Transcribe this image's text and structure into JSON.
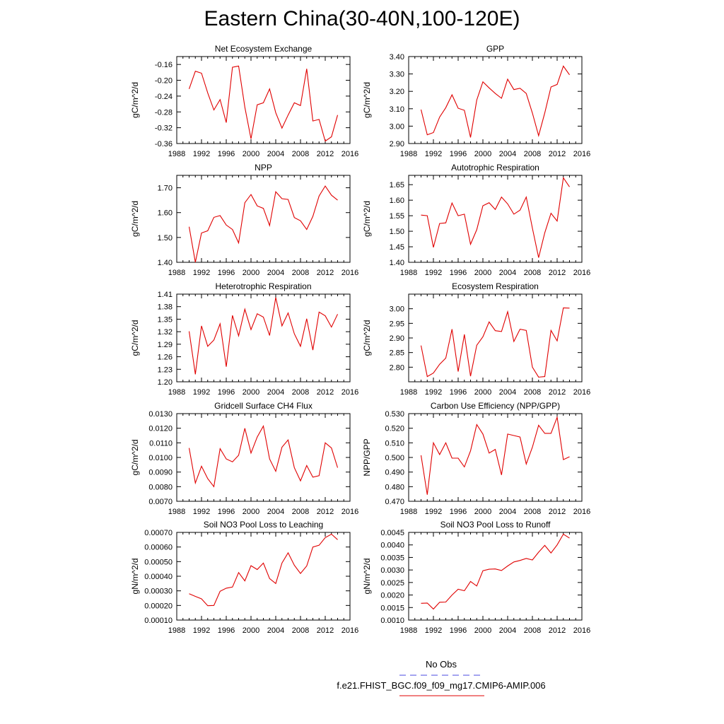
{
  "figure": {
    "title": "Eastern China(30-40N,100-120E)",
    "legend": [
      {
        "label": "No Obs",
        "color": "#4a4ae0",
        "style": "dashed"
      },
      {
        "label": "f.e21.FHIST_BGC.f09_f09_mg17.CMIP6-AMIP.006",
        "color": "#e00000",
        "style": "solid"
      }
    ]
  },
  "chart_data": [
    {
      "type": "line",
      "title": "Net Ecosystem Exchange",
      "ylabel": "gC/m^2/d",
      "xlim": [
        1988,
        2016
      ],
      "xticks": [
        "1988",
        "1992",
        "1996",
        "2000",
        "2004",
        "2008",
        "2012",
        "2016"
      ],
      "ylim": [
        -0.36,
        -0.14
      ],
      "yticks": [
        "-0.16",
        "-0.20",
        "-0.24",
        "-0.28",
        "-0.32",
        "-0.36"
      ],
      "color": "#e00000",
      "x": [
        1990,
        1991,
        1992,
        1993,
        1994,
        1995,
        1996,
        1997,
        1998,
        1999,
        2000,
        2001,
        2002,
        2003,
        2004,
        2005,
        2006,
        2007,
        2008,
        2009,
        2010,
        2011,
        2012,
        2013,
        2014
      ],
      "y": [
        -0.222,
        -0.177,
        -0.182,
        -0.232,
        -0.275,
        -0.249,
        -0.307,
        -0.167,
        -0.164,
        -0.268,
        -0.348,
        -0.262,
        -0.257,
        -0.222,
        -0.282,
        -0.321,
        -0.288,
        -0.257,
        -0.264,
        -0.171,
        -0.303,
        -0.299,
        -0.354,
        -0.343,
        -0.288
      ]
    },
    {
      "type": "line",
      "title": "GPP",
      "ylabel": "gC/m^2/d",
      "xlim": [
        1988,
        2016
      ],
      "xticks": [
        "1988",
        "1992",
        "1996",
        "2000",
        "2004",
        "2008",
        "2012",
        "2016"
      ],
      "ylim": [
        2.9,
        3.4
      ],
      "yticks": [
        "3.40",
        "3.30",
        "3.20",
        "3.10",
        "3.00",
        "2.90"
      ],
      "color": "#e00000",
      "x": [
        1990,
        1991,
        1992,
        1993,
        1994,
        1995,
        1996,
        1997,
        1998,
        1999,
        2000,
        2001,
        2002,
        2003,
        2004,
        2005,
        2006,
        2007,
        2008,
        2009,
        2010,
        2011,
        2012,
        2013,
        2014
      ],
      "y": [
        3.095,
        2.95,
        2.963,
        3.052,
        3.106,
        3.18,
        3.103,
        3.091,
        2.935,
        3.15,
        3.255,
        3.22,
        3.188,
        3.16,
        3.27,
        3.21,
        3.218,
        3.188,
        3.075,
        2.945,
        3.076,
        3.225,
        3.24,
        3.345,
        3.295
      ]
    },
    {
      "type": "line",
      "title": "NPP",
      "ylabel": "gC/m^2/d",
      "xlim": [
        1988,
        2016
      ],
      "xticks": [
        "1988",
        "1992",
        "1996",
        "2000",
        "2004",
        "2008",
        "2012",
        "2016"
      ],
      "ylim": [
        1.4,
        1.75
      ],
      "yticks": [
        "1.70",
        "1.60",
        "1.50",
        "1.40"
      ],
      "color": "#e00000",
      "x": [
        1990,
        1991,
        1992,
        1993,
        1994,
        1995,
        1996,
        1997,
        1998,
        1999,
        2000,
        2001,
        2002,
        2003,
        2004,
        2005,
        2006,
        2007,
        2008,
        2009,
        2010,
        2011,
        2012,
        2013,
        2014
      ],
      "y": [
        1.543,
        1.4,
        1.518,
        1.527,
        1.581,
        1.588,
        1.55,
        1.532,
        1.478,
        1.64,
        1.673,
        1.627,
        1.617,
        1.548,
        1.684,
        1.656,
        1.653,
        1.58,
        1.567,
        1.532,
        1.585,
        1.667,
        1.707,
        1.67,
        1.65
      ]
    },
    {
      "type": "line",
      "title": "Autotrophic Respiration",
      "ylabel": "gC/m^2/d",
      "xlim": [
        1988,
        2016
      ],
      "xticks": [
        "1988",
        "1992",
        "1996",
        "2000",
        "2004",
        "2008",
        "2012",
        "2016"
      ],
      "ylim": [
        1.4,
        1.68
      ],
      "yticks": [
        "1.65",
        "1.60",
        "1.55",
        "1.50",
        "1.45",
        "1.40"
      ],
      "color": "#e00000",
      "x": [
        1990,
        1991,
        1992,
        1993,
        1994,
        1995,
        1996,
        1997,
        1998,
        1999,
        2000,
        2001,
        2002,
        2003,
        2004,
        2005,
        2006,
        2007,
        2008,
        2009,
        2010,
        2011,
        2012,
        2013,
        2014
      ],
      "y": [
        1.552,
        1.55,
        1.448,
        1.525,
        1.527,
        1.591,
        1.55,
        1.555,
        1.458,
        1.505,
        1.582,
        1.592,
        1.57,
        1.61,
        1.588,
        1.555,
        1.568,
        1.61,
        1.51,
        1.415,
        1.495,
        1.558,
        1.533,
        1.672,
        1.643
      ]
    },
    {
      "type": "line",
      "title": "Heterotrophic Respiration",
      "ylabel": "gC/m^2/d",
      "xlim": [
        1988,
        2016
      ],
      "xticks": [
        "1988",
        "1992",
        "1996",
        "2000",
        "2004",
        "2008",
        "2012",
        "2016"
      ],
      "ylim": [
        1.2,
        1.41
      ],
      "yticks": [
        "1.41",
        "1.38",
        "1.35",
        "1.32",
        "1.29",
        "1.26",
        "1.23",
        "1.20"
      ],
      "color": "#e00000",
      "x": [
        1990,
        1991,
        1992,
        1993,
        1994,
        1995,
        1996,
        1997,
        1998,
        1999,
        2000,
        2001,
        2002,
        2003,
        2004,
        2005,
        2006,
        2007,
        2008,
        2009,
        2010,
        2011,
        2012,
        2013,
        2014
      ],
      "y": [
        1.321,
        1.218,
        1.334,
        1.285,
        1.3,
        1.339,
        1.236,
        1.359,
        1.31,
        1.374,
        1.325,
        1.363,
        1.355,
        1.311,
        1.402,
        1.334,
        1.365,
        1.315,
        1.285,
        1.351,
        1.276,
        1.367,
        1.358,
        1.331,
        1.362
      ]
    },
    {
      "type": "line",
      "title": "Ecosystem Respiration",
      "ylabel": "gC/m^2/d",
      "xlim": [
        1988,
        2016
      ],
      "xticks": [
        "1988",
        "1992",
        "1996",
        "2000",
        "2004",
        "2008",
        "2012",
        "2016"
      ],
      "ylim": [
        2.75,
        3.05
      ],
      "yticks": [
        "3.00",
        "2.95",
        "2.90",
        "2.85",
        "2.80"
      ],
      "color": "#e00000",
      "x": [
        1990,
        1991,
        1992,
        1993,
        1994,
        1995,
        1996,
        1997,
        1998,
        1999,
        2000,
        2001,
        2002,
        2003,
        2004,
        2005,
        2006,
        2007,
        2008,
        2009,
        2010,
        2011,
        2012,
        2013,
        2014
      ],
      "y": [
        2.874,
        2.768,
        2.78,
        2.81,
        2.831,
        2.93,
        2.785,
        2.912,
        2.769,
        2.875,
        2.904,
        2.955,
        2.925,
        2.922,
        2.99,
        2.888,
        2.93,
        2.926,
        2.8,
        2.766,
        2.768,
        2.926,
        2.89,
        3.003,
        3.002
      ]
    },
    {
      "type": "line",
      "title": "Gridcell Surface CH4 Flux",
      "ylabel": "gC/m^2/d",
      "xlim": [
        1988,
        2016
      ],
      "xticks": [
        "1988",
        "1992",
        "1996",
        "2000",
        "2004",
        "2008",
        "2012",
        "2016"
      ],
      "ylim": [
        0.007,
        0.013
      ],
      "yticks": [
        "0.0130",
        "0.0120",
        "0.0110",
        "0.0100",
        "0.0090",
        "0.0080",
        "0.0070"
      ],
      "color": "#e00000",
      "x": [
        1990,
        1991,
        1992,
        1993,
        1994,
        1995,
        1996,
        1997,
        1998,
        1999,
        2000,
        2001,
        2002,
        2003,
        2004,
        2005,
        2006,
        2007,
        2008,
        2009,
        2010,
        2011,
        2012,
        2013,
        2014
      ],
      "y": [
        0.01065,
        0.00825,
        0.0094,
        0.00855,
        0.008,
        0.0106,
        0.0099,
        0.0097,
        0.01015,
        0.012,
        0.0103,
        0.0114,
        0.01215,
        0.0099,
        0.00905,
        0.0107,
        0.0112,
        0.0093,
        0.0084,
        0.00945,
        0.00865,
        0.00875,
        0.011,
        0.01065,
        0.0093
      ]
    },
    {
      "type": "line",
      "title": "Carbon Use Efficiency (NPP/GPP)",
      "ylabel": "NPP/GPP",
      "xlim": [
        1988,
        2016
      ],
      "xticks": [
        "1988",
        "1992",
        "1996",
        "2000",
        "2004",
        "2008",
        "2012",
        "2016"
      ],
      "ylim": [
        0.47,
        0.53
      ],
      "yticks": [
        "0.530",
        "0.520",
        "0.510",
        "0.500",
        "0.490",
        "0.480",
        "0.470"
      ],
      "color": "#e00000",
      "x": [
        1990,
        1991,
        1992,
        1993,
        1994,
        1995,
        1996,
        1997,
        1998,
        1999,
        2000,
        2001,
        2002,
        2003,
        2004,
        2005,
        2006,
        2007,
        2008,
        2009,
        2010,
        2011,
        2012,
        2013,
        2014
      ],
      "y": [
        0.5015,
        0.4745,
        0.51,
        0.502,
        0.51,
        0.4995,
        0.4995,
        0.4935,
        0.5045,
        0.5225,
        0.516,
        0.503,
        0.5055,
        0.488,
        0.516,
        0.515,
        0.514,
        0.4955,
        0.507,
        0.522,
        0.5165,
        0.5165,
        0.5275,
        0.4985,
        0.5005
      ]
    },
    {
      "type": "line",
      "title": "Soil NO3 Pool Loss to Leaching",
      "ylabel": "gN/m^2/d",
      "xlim": [
        1988,
        2016
      ],
      "xticks": [
        "1988",
        "1992",
        "1996",
        "2000",
        "2004",
        "2008",
        "2012",
        "2016"
      ],
      "ylim": [
        0.0001,
        0.0007
      ],
      "yticks": [
        "0.00070",
        "0.00060",
        "0.00050",
        "0.00040",
        "0.00030",
        "0.00020",
        "0.00010"
      ],
      "color": "#e00000",
      "x": [
        1990,
        1991,
        1992,
        1993,
        1994,
        1995,
        1996,
        1997,
        1998,
        1999,
        2000,
        2001,
        2002,
        2003,
        2004,
        2005,
        2006,
        2007,
        2008,
        2009,
        2010,
        2011,
        2012,
        2013,
        2014
      ],
      "y": [
        0.00028,
        0.000262,
        0.000245,
        0.000198,
        0.0002,
        0.000297,
        0.000318,
        0.000326,
        0.000425,
        0.000368,
        0.000472,
        0.000446,
        0.00049,
        0.000384,
        0.00035,
        0.00049,
        0.00056,
        0.000475,
        0.000419,
        0.00047,
        0.0006,
        0.000612,
        0.000664,
        0.000688,
        0.00065
      ]
    },
    {
      "type": "line",
      "title": "Soil NO3 Pool Loss to Runoff",
      "ylabel": "gN/m^2/d",
      "xlim": [
        1988,
        2016
      ],
      "xticks": [
        "1988",
        "1992",
        "1996",
        "2000",
        "2004",
        "2008",
        "2012",
        "2016"
      ],
      "ylim": [
        0.001,
        0.0045
      ],
      "yticks": [
        "0.0045",
        "0.0040",
        "0.0035",
        "0.0030",
        "0.0025",
        "0.0020",
        "0.0015",
        "0.0010"
      ],
      "color": "#e00000",
      "x": [
        1990,
        1991,
        1992,
        1993,
        1994,
        1995,
        1996,
        1997,
        1998,
        1999,
        2000,
        2001,
        2002,
        2003,
        2004,
        2005,
        2006,
        2007,
        2008,
        2009,
        2010,
        2011,
        2012,
        2013,
        2014
      ],
      "y": [
        0.00167,
        0.00168,
        0.00144,
        0.00171,
        0.00172,
        0.002,
        0.00223,
        0.00217,
        0.00254,
        0.00236,
        0.00297,
        0.00303,
        0.00304,
        0.00298,
        0.00316,
        0.00332,
        0.00338,
        0.00346,
        0.0034,
        0.00371,
        0.00398,
        0.00368,
        0.004,
        0.00443,
        0.00427
      ]
    }
  ]
}
